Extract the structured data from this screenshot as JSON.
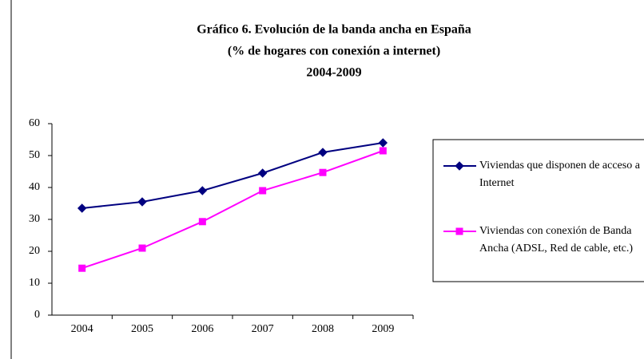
{
  "chart_data": {
    "type": "line",
    "title": [
      "Gráfico 6. Evolución de la banda ancha en España",
      "(% de hogares con conexión a internet)",
      "2004-2009"
    ],
    "categories": [
      "2004",
      "2005",
      "2006",
      "2007",
      "2008",
      "2009"
    ],
    "series": [
      {
        "name": "Viviendas que disponen de acceso a Internet",
        "color": "#000080",
        "marker": "diamond",
        "values": [
          33.5,
          35.5,
          39,
          44.5,
          51,
          54
        ]
      },
      {
        "name": "Viviendas con conexión de Banda Ancha  (ADSL, Red de cable, etc.)",
        "color": "#ff00ff",
        "marker": "square",
        "values": [
          14.7,
          21,
          29.3,
          39,
          44.7,
          51.5
        ]
      }
    ],
    "ylim": [
      0,
      60
    ],
    "yticks": [
      0,
      10,
      20,
      30,
      40,
      50,
      60
    ],
    "grid": false,
    "legend": "right"
  }
}
